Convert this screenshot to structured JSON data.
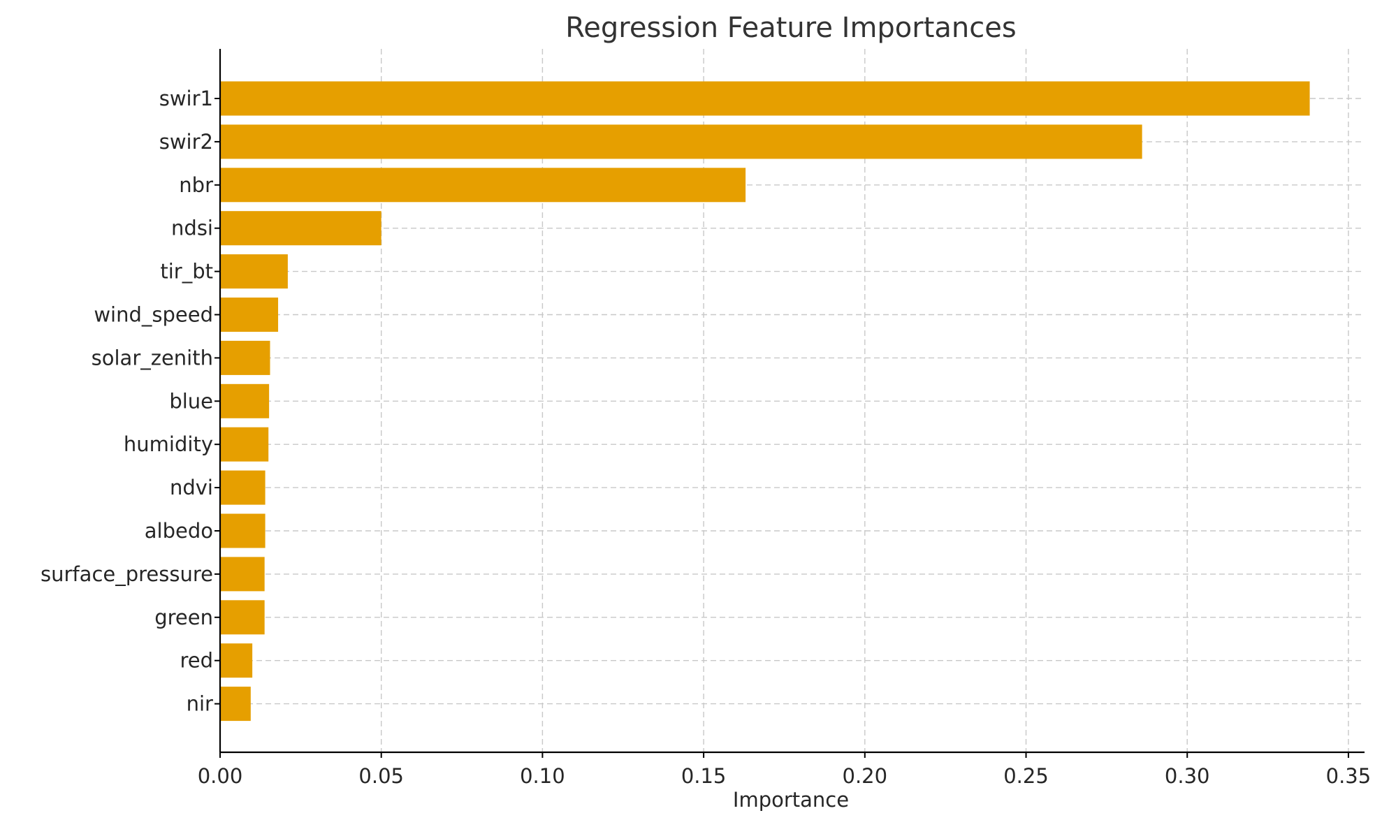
{
  "chart_data": {
    "type": "bar",
    "orientation": "horizontal",
    "title": "Regression Feature Importances",
    "xlabel": "Importance",
    "ylabel": "",
    "categories": [
      "swir1",
      "swir2",
      "nbr",
      "ndsi",
      "tir_bt",
      "wind_speed",
      "solar_zenith",
      "blue",
      "humidity",
      "ndvi",
      "albedo",
      "surface_pressure",
      "green",
      "red",
      "nir"
    ],
    "values": [
      0.338,
      0.286,
      0.163,
      0.05,
      0.021,
      0.018,
      0.0155,
      0.0152,
      0.015,
      0.014,
      0.014,
      0.0138,
      0.0138,
      0.01,
      0.0095
    ],
    "xlim": [
      0,
      0.355
    ],
    "xticks": [
      0.0,
      0.05,
      0.1,
      0.15,
      0.2,
      0.25,
      0.3,
      0.35
    ],
    "xtick_labels": [
      "0.00",
      "0.05",
      "0.10",
      "0.15",
      "0.20",
      "0.25",
      "0.30",
      "0.35"
    ],
    "grid": true,
    "bar_color": "#E69F00"
  }
}
